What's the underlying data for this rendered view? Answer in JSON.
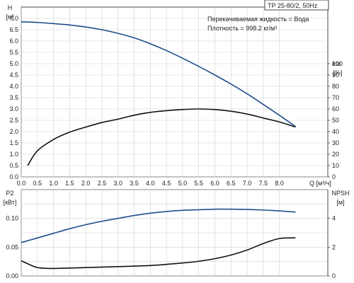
{
  "chart_data": [
    {
      "type": "line",
      "title": "TP 25-80/2, 50Hz",
      "info_lines": [
        "Перекачиваемая жидкость = Вода",
        "Плотность = 998.2 кг/м³"
      ],
      "xlabel": "Q [м³/ч]",
      "ylabel_left": [
        "H",
        "[м]"
      ],
      "ylabel_right": [
        "eta",
        "[%]"
      ],
      "xlim": [
        0,
        9.5
      ],
      "ylim_left": [
        0,
        7.5
      ],
      "ylim_right": [
        0,
        150
      ],
      "x_ticks": [
        "0.0",
        "0.5",
        "1.0",
        "1.5",
        "2.0",
        "2.5",
        "3.0",
        "3.5",
        "4.0",
        "4.5",
        "5.0",
        "5.5",
        "6.0",
        "6.5",
        "7.0",
        "7.5",
        "8.0"
      ],
      "y_ticks_left": [
        "0.0",
        "0.5",
        "1.0",
        "1.5",
        "2.0",
        "2.5",
        "3.0",
        "3.5",
        "4.0",
        "4.5",
        "5.0",
        "5.5",
        "6.0",
        "6.5",
        "7.0"
      ],
      "y_ticks_right": [
        "0",
        "10",
        "20",
        "30",
        "40",
        "50",
        "60",
        "70",
        "80",
        "90",
        "100"
      ],
      "grid": true,
      "series": [
        {
          "color": "#1f4e8c",
          "axis": "left",
          "x": [
            0,
            0.5,
            1,
            1.5,
            2,
            2.5,
            3,
            3.5,
            4,
            4.5,
            5,
            5.5,
            6,
            6.5,
            7,
            7.5,
            8,
            8.5
          ],
          "values": [
            6.85,
            6.82,
            6.77,
            6.71,
            6.62,
            6.5,
            6.34,
            6.14,
            5.88,
            5.58,
            5.24,
            4.88,
            4.5,
            4.1,
            3.67,
            3.2,
            2.72,
            2.22
          ]
        },
        {
          "color": "#111111",
          "axis": "right",
          "x": [
            0.2,
            0.5,
            1,
            1.5,
            2,
            2.5,
            3,
            3.5,
            4,
            4.5,
            5,
            5.5,
            6,
            6.5,
            7,
            7.5,
            8,
            8.5
          ],
          "values": [
            10,
            23,
            33,
            39.5,
            44,
            48,
            51,
            54.5,
            57,
            58.5,
            59.5,
            60,
            59.5,
            58,
            55.5,
            52,
            48.5,
            44
          ]
        }
      ]
    },
    {
      "type": "line",
      "xlim": [
        0,
        9.5
      ],
      "ylabel_left": [
        "P2",
        "[кВт]"
      ],
      "ylabel_right": [
        "NPSH",
        "[м]"
      ],
      "ylim_left": [
        0,
        0.15
      ],
      "ylim_right": [
        0,
        6
      ],
      "y_ticks_left": [
        "0.00",
        "0.05",
        "0.10"
      ],
      "y_ticks_right": [
        "0",
        "2",
        "4"
      ],
      "grid": true,
      "series": [
        {
          "color": "#1f4e8c",
          "axis": "left",
          "x": [
            0,
            0.5,
            1,
            1.5,
            2,
            2.5,
            3,
            3.5,
            4,
            4.5,
            5,
            5.5,
            6,
            6.5,
            7,
            7.5,
            8,
            8.5
          ],
          "values": [
            0.058,
            0.066,
            0.074,
            0.082,
            0.089,
            0.095,
            0.1,
            0.105,
            0.109,
            0.112,
            0.114,
            0.115,
            0.116,
            0.116,
            0.1155,
            0.1145,
            0.113,
            0.111
          ]
        },
        {
          "color": "#111111",
          "axis": "right",
          "x": [
            0,
            0.2,
            0.4,
            0.6,
            1,
            1.5,
            2,
            3,
            4,
            5,
            5.5,
            6,
            6.5,
            7,
            7.5,
            8,
            8.5
          ],
          "values": [
            1.05,
            0.85,
            0.65,
            0.55,
            0.52,
            0.55,
            0.58,
            0.65,
            0.72,
            0.9,
            1.02,
            1.2,
            1.45,
            1.8,
            2.25,
            2.6,
            2.65
          ]
        }
      ]
    }
  ]
}
